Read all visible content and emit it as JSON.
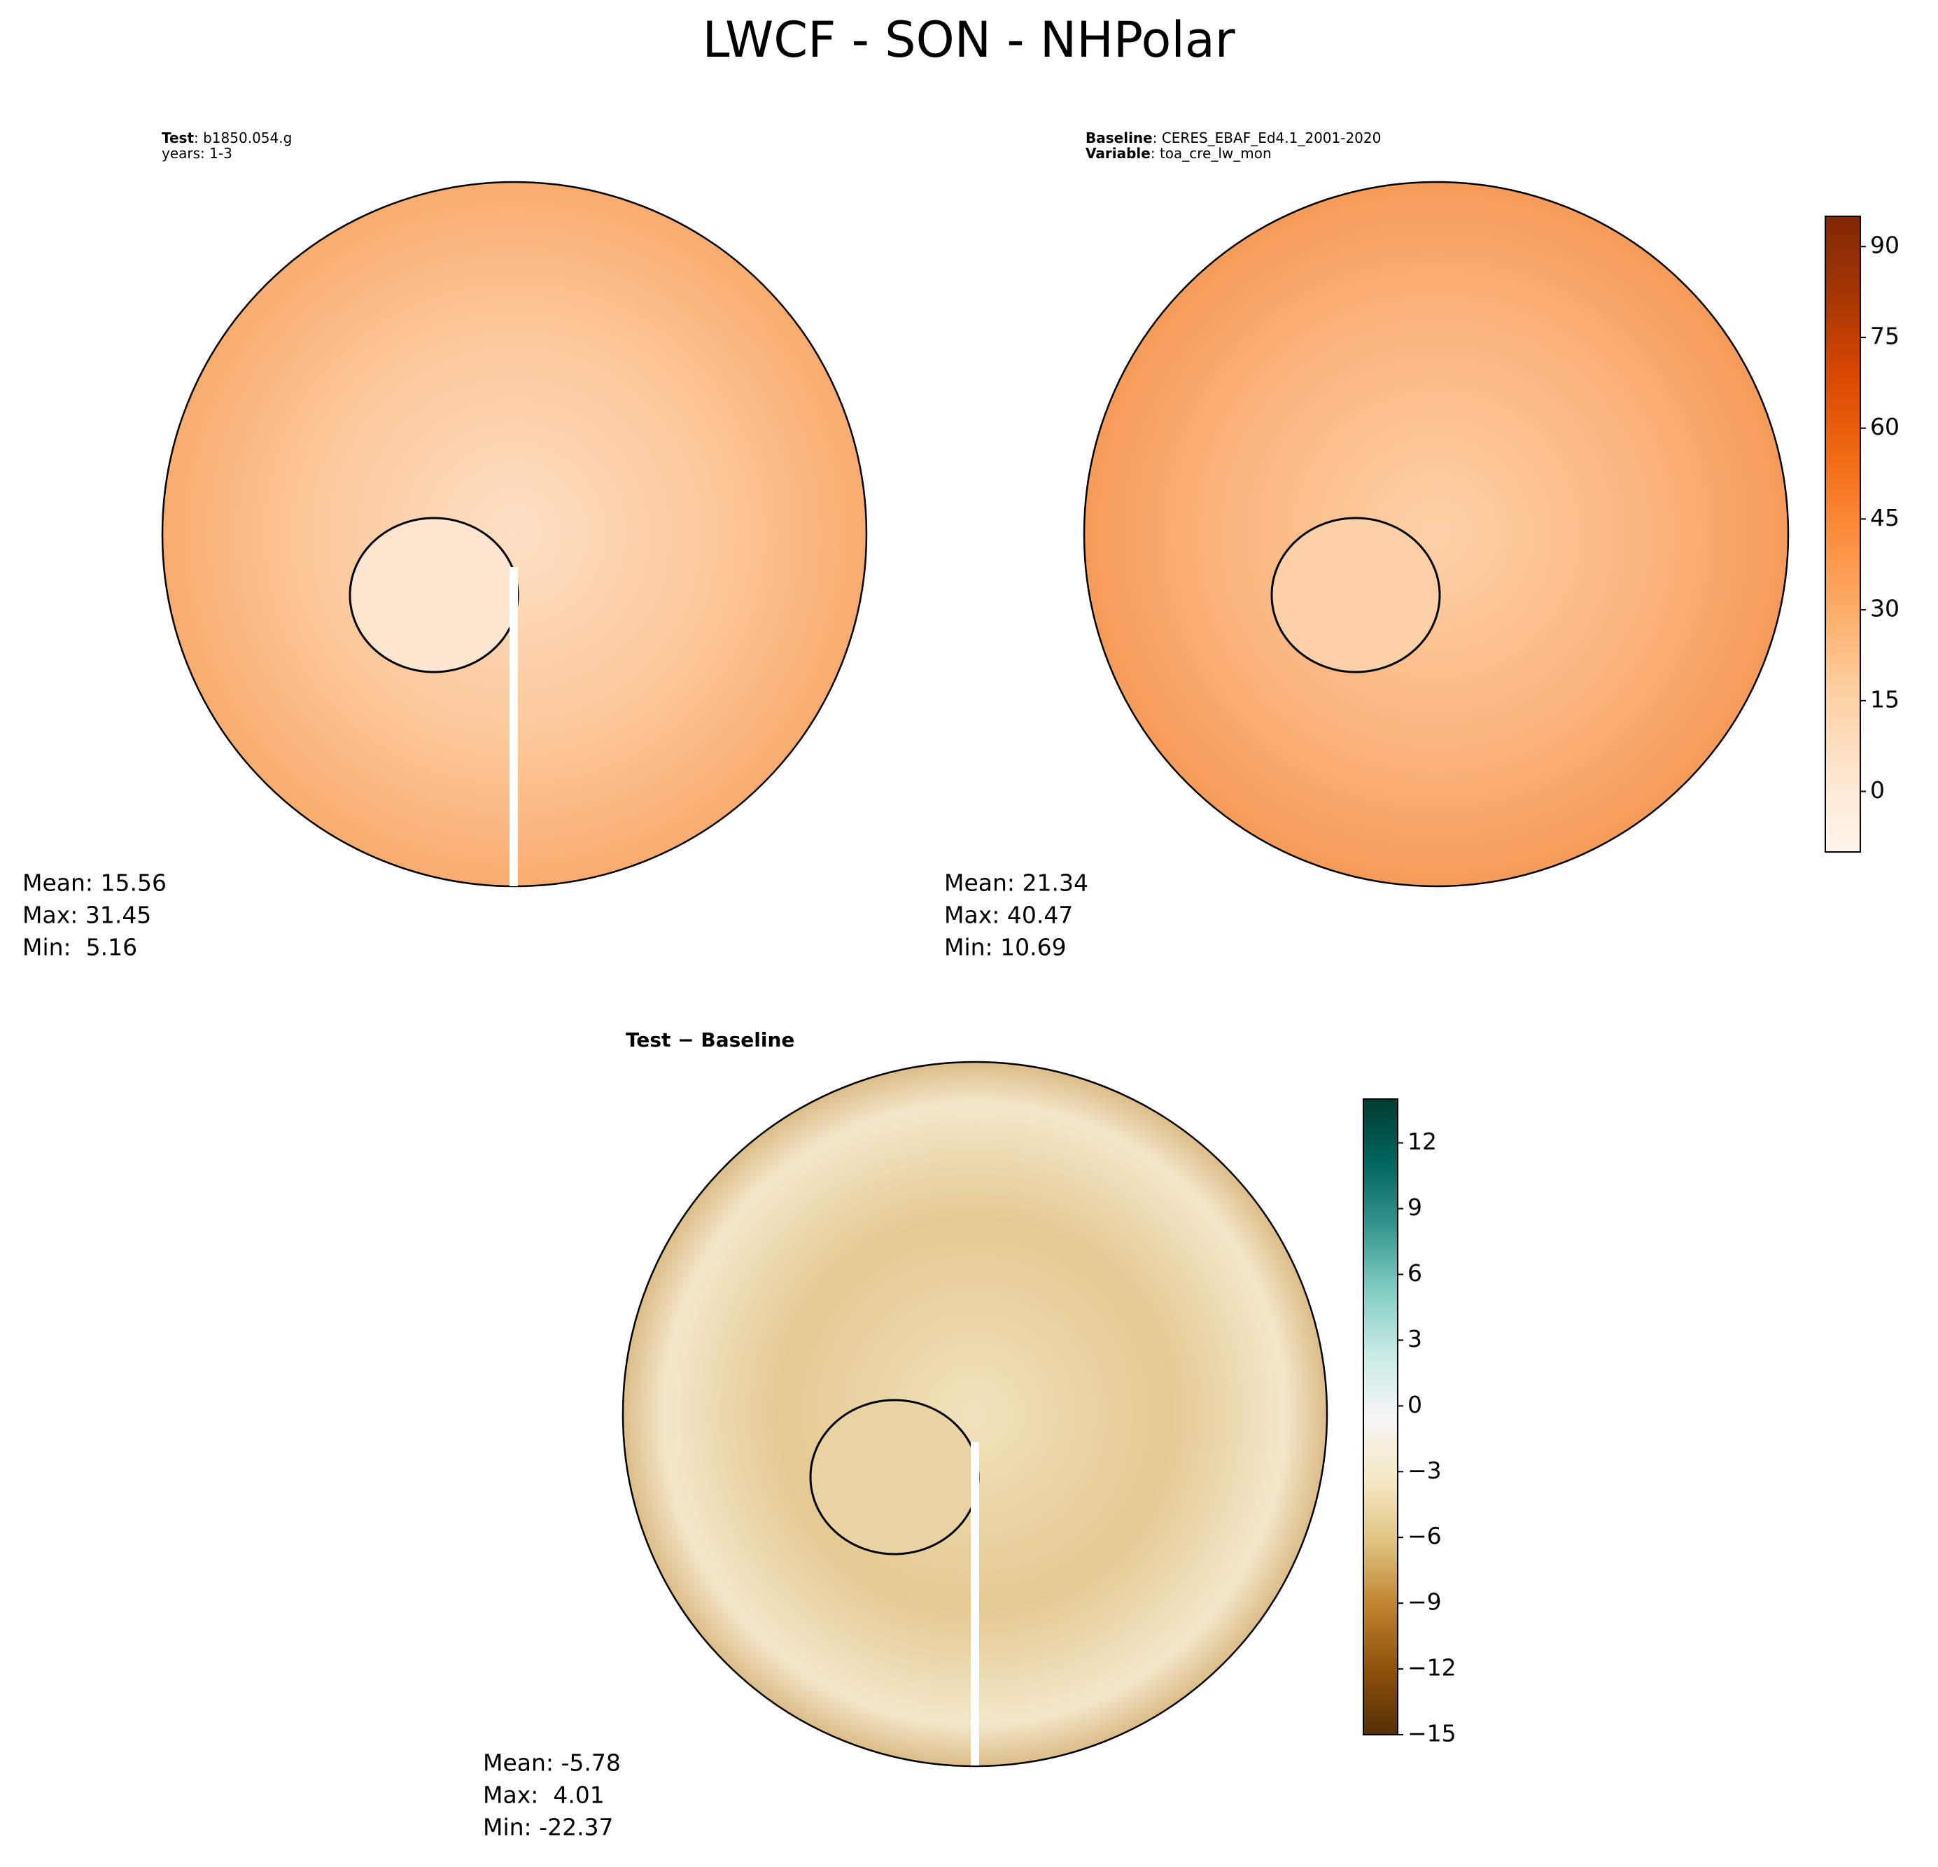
{
  "chart_data": {
    "type": "map",
    "title": "LWCF - SON - NHPolar",
    "panels": [
      {
        "lines": [
          {
            "label": "Test",
            "text": ": b1850.054.g"
          },
          {
            "text": "years: 1-3"
          }
        ],
        "stats": [
          "Mean: 15.56",
          "Max: 31.45",
          "Min:  5.16"
        ]
      },
      {
        "lines": [
          {
            "label": "Baseline",
            "text": ": CERES_EBAF_Ed4.1_2001-2020"
          },
          {
            "label": "Variable",
            "text": ": toa_cre_lw_mon"
          }
        ],
        "stats": [
          "Mean: 21.34",
          "Max: 40.47",
          "Min: 10.69"
        ]
      },
      {
        "lines": [
          {
            "label": "Test − Baseline"
          }
        ],
        "stats": [
          "Mean: -5.78",
          "Max:  4.01",
          "Min: -22.37"
        ]
      }
    ],
    "colorbars": [
      {
        "ylim": [
          -10,
          95
        ],
        "yticks": [
          0,
          15,
          30,
          45,
          60,
          75,
          90
        ],
        "cmap": [
          "#fff5eb",
          "#fee6ce",
          "#fdd0a2",
          "#fdae6b",
          "#fd8d3c",
          "#f16913",
          "#d94801",
          "#a63603",
          "#7f2704"
        ]
      },
      {
        "ylim": [
          -15,
          14
        ],
        "yticks": [
          {
            "value": -15,
            "label": "−15"
          },
          {
            "value": -12,
            "label": "−12"
          },
          {
            "value": -9,
            "label": "−9"
          },
          {
            "value": -6,
            "label": "−6"
          },
          {
            "value": -3,
            "label": "−3"
          },
          0,
          3,
          6,
          9,
          12
        ],
        "cmap": [
          "#543005",
          "#8c510a",
          "#bf812d",
          "#dfc27d",
          "#f6e8c3",
          "#f5f5f5",
          "#c7eae5",
          "#80cdc1",
          "#35978f",
          "#01665e",
          "#003c30"
        ]
      }
    ]
  }
}
